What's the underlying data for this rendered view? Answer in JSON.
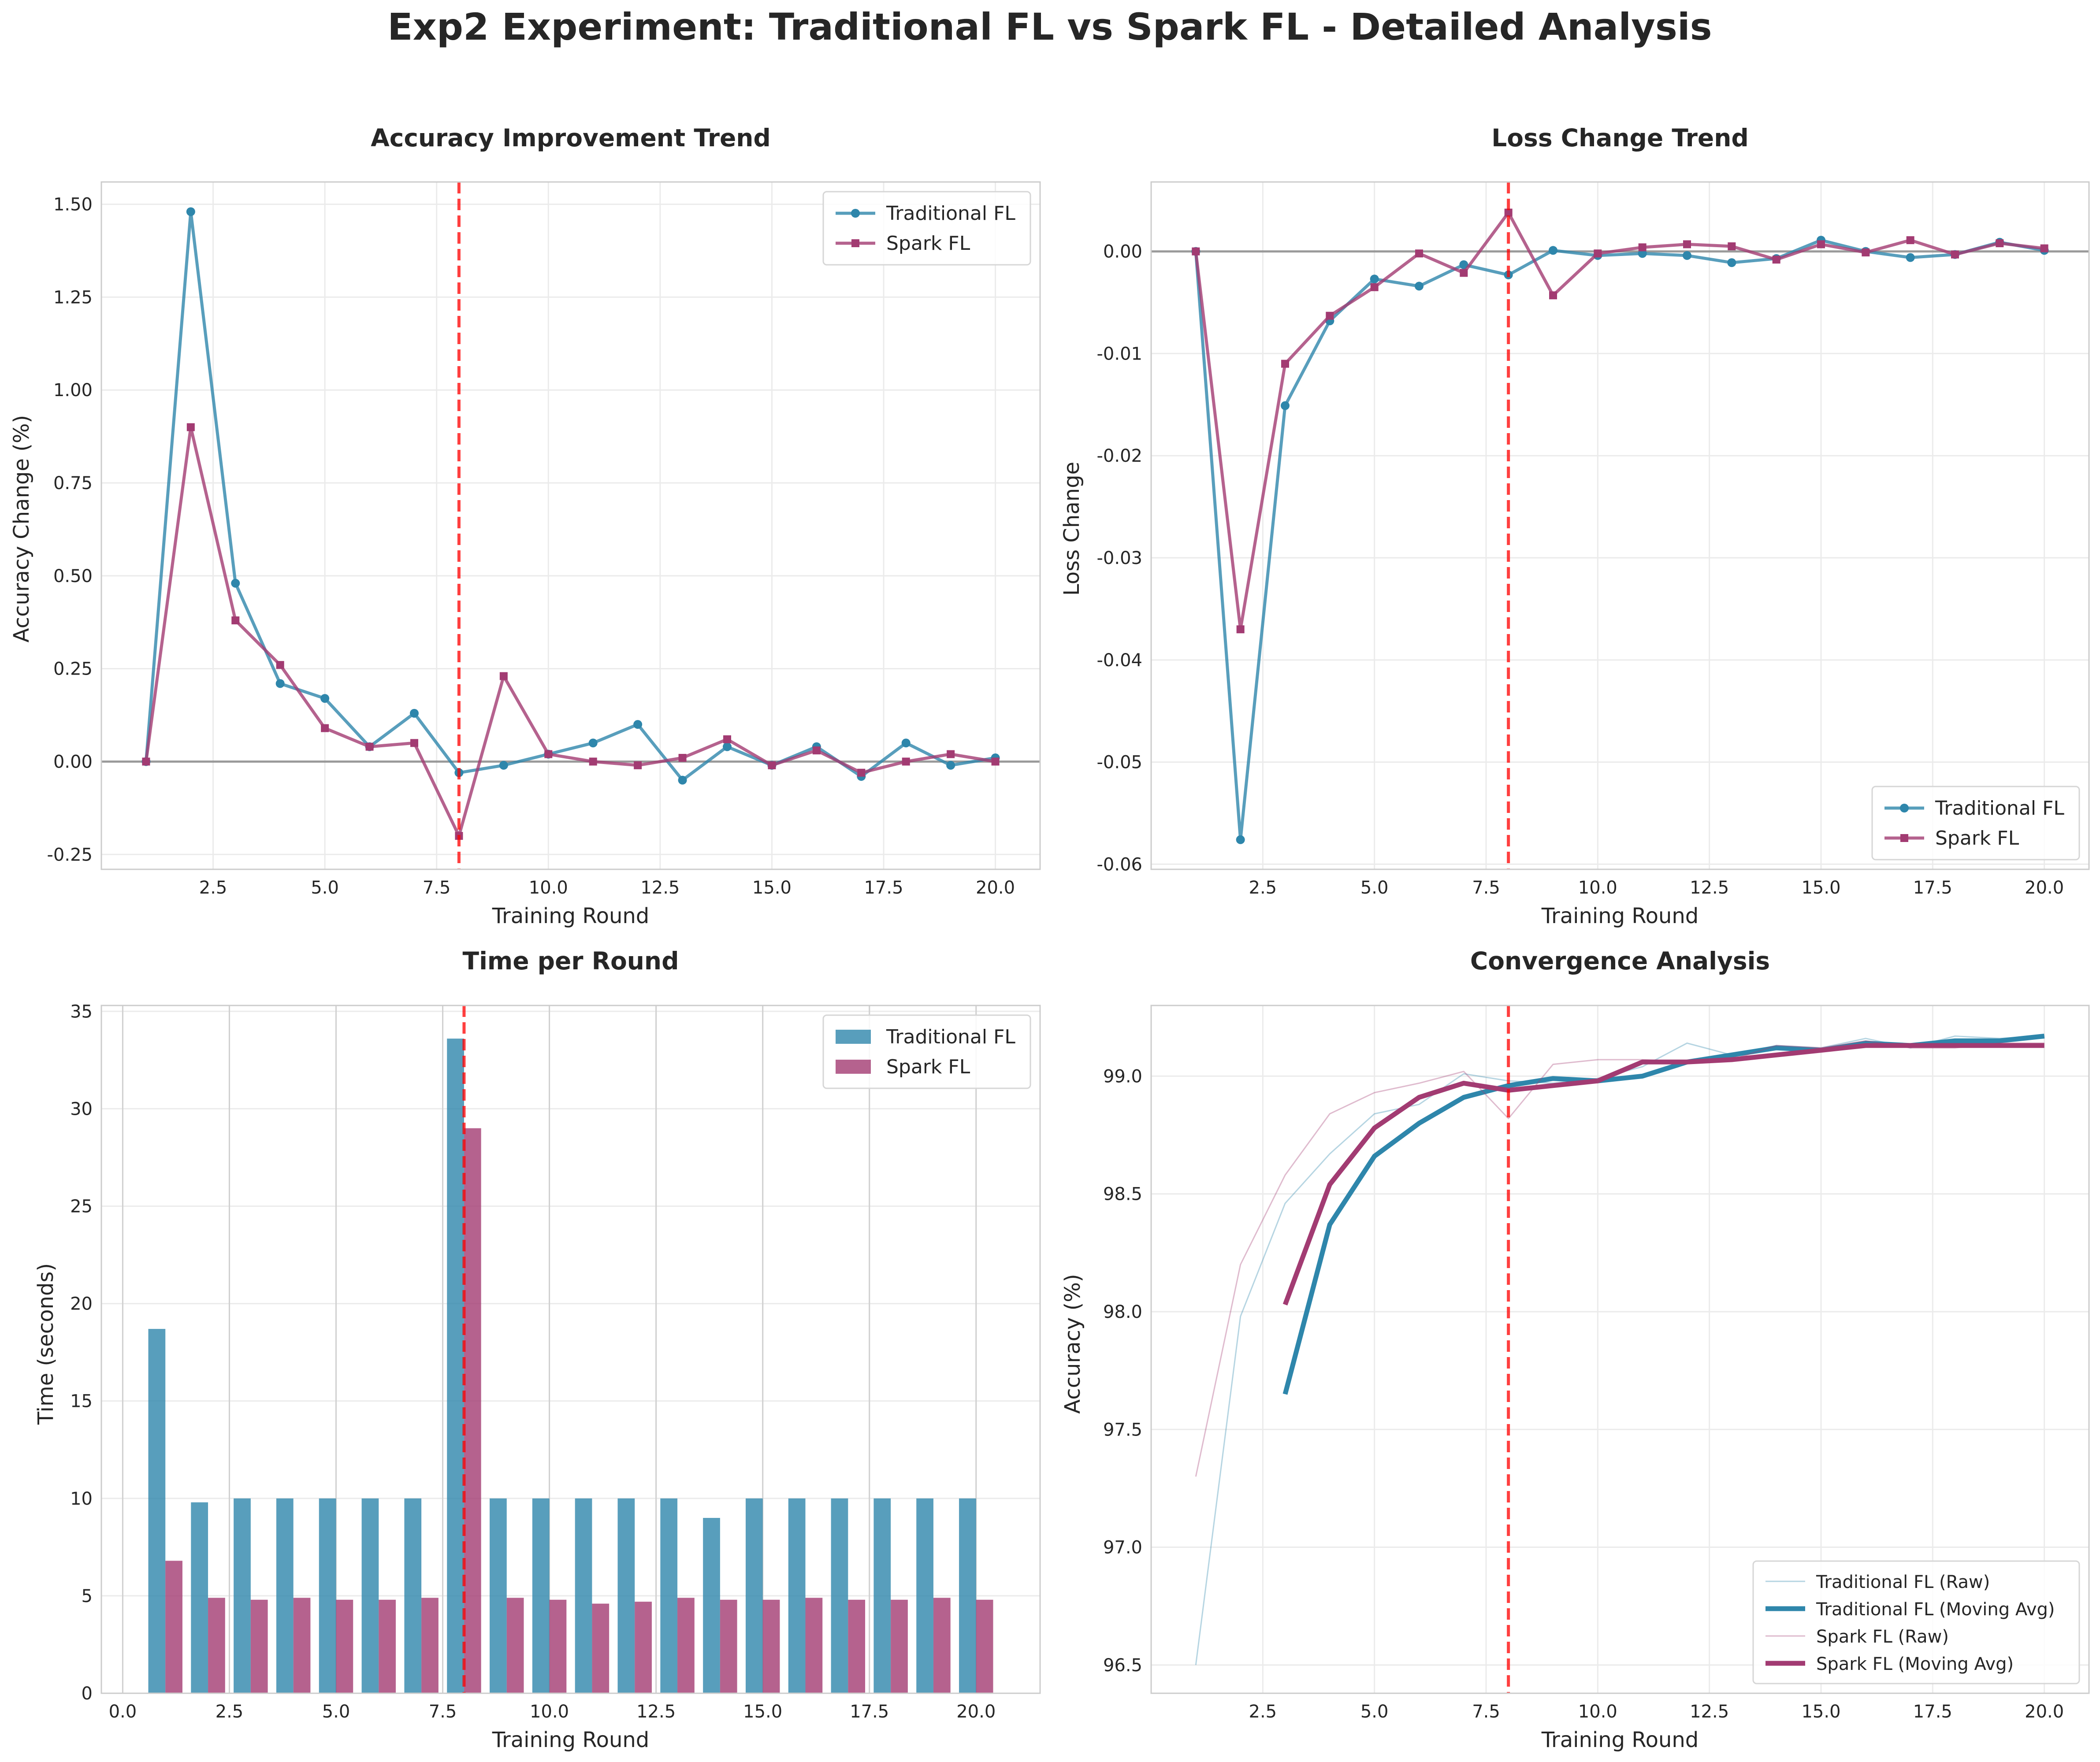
{
  "figure": {
    "title": "Exp2 Experiment: Traditional FL vs Spark FL - Detailed Analysis"
  },
  "colors": {
    "traditional": "#2e86ab",
    "spark": "#a23b72",
    "vline": "#ff0000",
    "zero_line": "#808080",
    "grid": "#ebebeb",
    "frame": "#cccccc"
  },
  "chart_data": [
    {
      "type": "line",
      "title": "Accuracy Improvement Trend",
      "xlabel": "Training Round",
      "ylabel": "Accuracy Change (%)",
      "xlim": [
        0,
        21
      ],
      "ylim": [
        -0.29,
        1.56
      ],
      "xticks": [
        2.5,
        5.0,
        7.5,
        10.0,
        12.5,
        15.0,
        17.5,
        20.0
      ],
      "xtick_labels": [
        "2.5",
        "5.0",
        "7.5",
        "10.0",
        "12.5",
        "15.0",
        "17.5",
        "20.0"
      ],
      "yticks": [
        -0.25,
        0,
        0.25,
        0.5,
        0.75,
        1.0,
        1.25,
        1.5
      ],
      "ytick_labels": [
        "-0.25",
        "0.00",
        "0.25",
        "0.50",
        "0.75",
        "1.00",
        "1.25",
        "1.50"
      ],
      "zero_line": true,
      "vline_x": 8,
      "grid": true,
      "legend_position": "upper right",
      "x": [
        1,
        2,
        3,
        4,
        5,
        6,
        7,
        8,
        9,
        10,
        11,
        12,
        13,
        14,
        15,
        16,
        17,
        18,
        19,
        20
      ],
      "series": [
        {
          "name": "Traditional FL",
          "marker": "circle",
          "values": [
            0,
            1.48,
            0.48,
            0.21,
            0.17,
            0.04,
            0.13,
            -0.03,
            -0.01,
            0.02,
            0.05,
            0.1,
            -0.05,
            0.04,
            -0.01,
            0.04,
            -0.04,
            0.05,
            -0.01,
            0.01
          ]
        },
        {
          "name": "Spark FL",
          "marker": "square",
          "values": [
            0,
            0.9,
            0.38,
            0.26,
            0.09,
            0.04,
            0.05,
            -0.2,
            0.23,
            0.02,
            0.0,
            -0.01,
            0.01,
            0.06,
            -0.01,
            0.03,
            -0.03,
            0.0,
            0.02,
            0.0
          ]
        }
      ]
    },
    {
      "type": "line",
      "title": "Loss Change Trend",
      "xlabel": "Training Round",
      "ylabel": "Loss Change",
      "xlim": [
        0,
        21
      ],
      "ylim": [
        -0.0605,
        0.0068
      ],
      "xticks": [
        2.5,
        5.0,
        7.5,
        10.0,
        12.5,
        15.0,
        17.5,
        20.0
      ],
      "xtick_labels": [
        "2.5",
        "5.0",
        "7.5",
        "10.0",
        "12.5",
        "15.0",
        "17.5",
        "20.0"
      ],
      "yticks": [
        -0.06,
        -0.05,
        -0.04,
        -0.03,
        -0.02,
        -0.01,
        0
      ],
      "ytick_labels": [
        "-0.06",
        "-0.05",
        "-0.04",
        "-0.03",
        "-0.02",
        "-0.01",
        "0.00"
      ],
      "zero_line": true,
      "vline_x": 8,
      "grid": true,
      "legend_position": "lower right",
      "x": [
        1,
        2,
        3,
        4,
        5,
        6,
        7,
        8,
        9,
        10,
        11,
        12,
        13,
        14,
        15,
        16,
        17,
        18,
        19,
        20
      ],
      "series": [
        {
          "name": "Traditional FL",
          "marker": "circle",
          "values": [
            0,
            -0.0576,
            -0.0151,
            -0.0068,
            -0.0027,
            -0.0034,
            -0.0013,
            -0.0023,
            0.0001,
            -0.0004,
            -0.0002,
            -0.0004,
            -0.0011,
            -0.0007,
            0.0011,
            0.0,
            -0.0006,
            -0.0003,
            0.0009,
            0.0001
          ]
        },
        {
          "name": "Spark FL",
          "marker": "square",
          "values": [
            0,
            -0.037,
            -0.011,
            -0.0063,
            -0.0035,
            -0.0002,
            -0.0021,
            0.0038,
            -0.0043,
            -0.0002,
            0.0004,
            0.0007,
            0.0005,
            -0.0008,
            0.0007,
            -0.0001,
            0.0011,
            -0.0003,
            0.0008,
            0.0003
          ]
        }
      ]
    },
    {
      "type": "bar",
      "title": "Time per Round",
      "xlabel": "Training Round",
      "ylabel": "Time (seconds)",
      "xlim": [
        -0.5,
        21.5
      ],
      "ylim": [
        0,
        35.3
      ],
      "xticks": [
        0,
        2.5,
        5.0,
        7.5,
        10.0,
        12.5,
        15.0,
        17.5,
        20.0
      ],
      "xtick_labels": [
        "0.0",
        "2.5",
        "5.0",
        "7.5",
        "10.0",
        "12.5",
        "15.0",
        "17.5",
        "20.0"
      ],
      "yticks": [
        0,
        5,
        10,
        15,
        20,
        25,
        30,
        35
      ],
      "ytick_labels": [
        "0",
        "5",
        "10",
        "15",
        "20",
        "25",
        "30",
        "35"
      ],
      "vline_x": 8,
      "grid": true,
      "legend_position": "upper right",
      "bar_width": 0.4,
      "x": [
        1,
        2,
        3,
        4,
        5,
        6,
        7,
        8,
        9,
        10,
        11,
        12,
        13,
        14,
        15,
        16,
        17,
        18,
        19,
        20
      ],
      "series": [
        {
          "name": "Traditional FL",
          "values": [
            18.7,
            9.8,
            10.0,
            10.0,
            10.0,
            10.0,
            10.0,
            33.6,
            10.0,
            10.0,
            10.0,
            10.0,
            10.0,
            9.0,
            10.0,
            10.0,
            10.0,
            10.0,
            10.0,
            10.0
          ]
        },
        {
          "name": "Spark FL",
          "values": [
            6.8,
            4.9,
            4.8,
            4.9,
            4.8,
            4.8,
            4.9,
            29.0,
            4.9,
            4.8,
            4.6,
            4.7,
            4.9,
            4.8,
            4.8,
            4.9,
            4.8,
            4.8,
            4.9,
            4.8
          ]
        }
      ]
    },
    {
      "type": "line",
      "title": "Convergence Analysis",
      "xlabel": "Training Round",
      "ylabel": "Accuracy (%)",
      "xlim": [
        0,
        21
      ],
      "ylim": [
        96.38,
        99.3
      ],
      "xticks": [
        2.5,
        5.0,
        7.5,
        10.0,
        12.5,
        15.0,
        17.5,
        20.0
      ],
      "xtick_labels": [
        "2.5",
        "5.0",
        "7.5",
        "10.0",
        "12.5",
        "15.0",
        "17.5",
        "20.0"
      ],
      "yticks": [
        96.5,
        97.0,
        97.5,
        98.0,
        98.5,
        99.0
      ],
      "ytick_labels": [
        "96.5",
        "97.0",
        "97.5",
        "98.0",
        "98.5",
        "99.0"
      ],
      "vline_x": 8,
      "grid": true,
      "legend_position": "lower right",
      "series": [
        {
          "name": "Traditional FL (Raw)",
          "style": "thin",
          "x": [
            1,
            2,
            3,
            4,
            5,
            6,
            7,
            8,
            9,
            10,
            11,
            12,
            13,
            14,
            15,
            16,
            17,
            18,
            19,
            20
          ],
          "values": [
            96.5,
            97.98,
            98.46,
            98.67,
            98.84,
            98.88,
            99.01,
            98.98,
            98.97,
            98.99,
            99.04,
            99.14,
            99.09,
            99.13,
            99.12,
            99.16,
            99.12,
            99.17,
            99.16,
            99.17
          ]
        },
        {
          "name": "Traditional FL (Moving Avg)",
          "style": "thick",
          "x": [
            3,
            4,
            5,
            6,
            7,
            8,
            9,
            10,
            11,
            12,
            13,
            14,
            15,
            16,
            17,
            18,
            19,
            20
          ],
          "values": [
            97.65,
            98.37,
            98.66,
            98.8,
            98.91,
            98.96,
            98.99,
            98.98,
            99.0,
            99.06,
            99.09,
            99.12,
            99.11,
            99.14,
            99.13,
            99.15,
            99.15,
            99.17
          ]
        },
        {
          "name": "Spark FL (Raw)",
          "style": "thin",
          "x": [
            1,
            2,
            3,
            4,
            5,
            6,
            7,
            8,
            9,
            10,
            11,
            12,
            13,
            14,
            15,
            16,
            17,
            18,
            19,
            20
          ],
          "values": [
            97.3,
            98.2,
            98.58,
            98.84,
            98.93,
            98.97,
            99.02,
            98.82,
            99.05,
            99.07,
            99.07,
            99.06,
            99.07,
            99.13,
            99.12,
            99.15,
            99.12,
            99.12,
            99.14,
            99.14
          ]
        },
        {
          "name": "Spark FL (Moving Avg)",
          "style": "thick",
          "x": [
            3,
            4,
            5,
            6,
            7,
            8,
            9,
            10,
            11,
            12,
            13,
            14,
            15,
            16,
            17,
            18,
            19,
            20
          ],
          "values": [
            98.03,
            98.54,
            98.78,
            98.91,
            98.97,
            98.94,
            98.96,
            98.98,
            99.06,
            99.06,
            99.07,
            99.09,
            99.11,
            99.13,
            99.13,
            99.13,
            99.13,
            99.13
          ]
        }
      ]
    }
  ]
}
